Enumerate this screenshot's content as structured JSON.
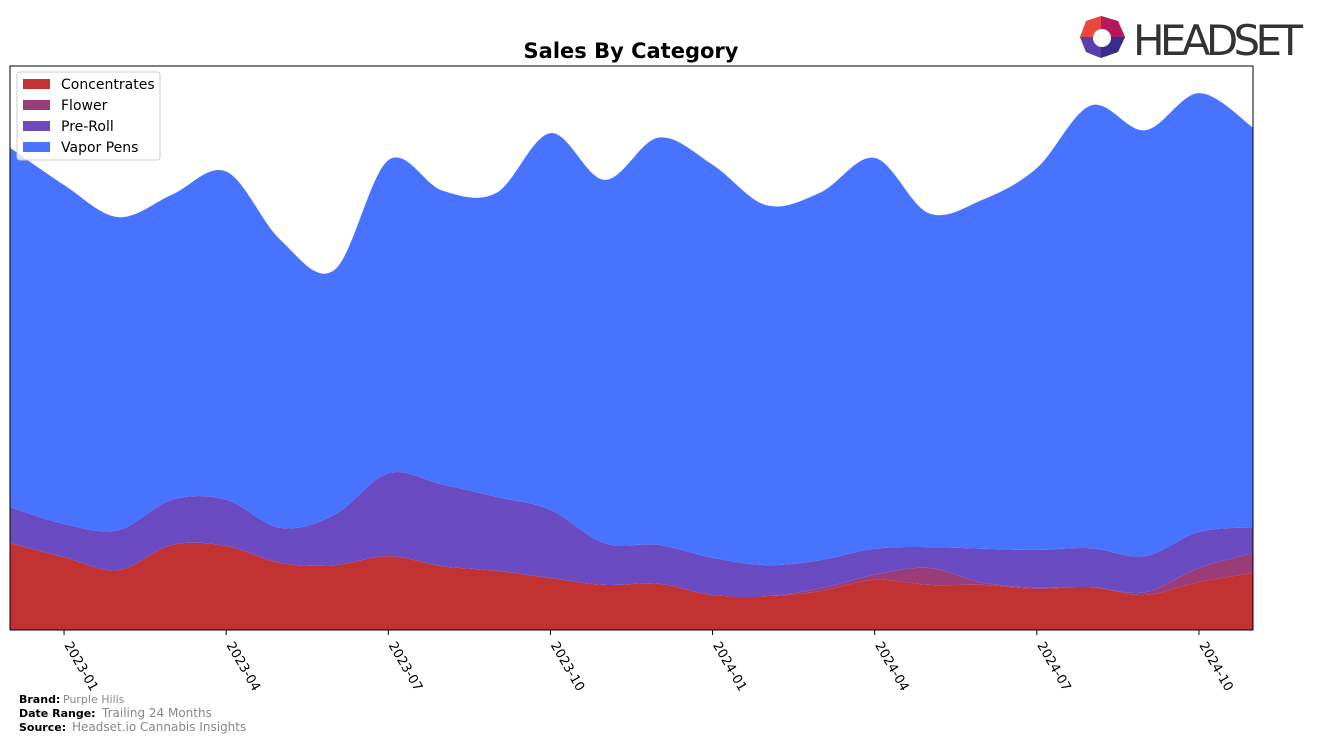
{
  "chart_data": {
    "type": "stacked-area",
    "title": "Sales By Category",
    "x": [
      "2022-12",
      "2023-01",
      "2023-02",
      "2023-03",
      "2023-04",
      "2023-05",
      "2023-06",
      "2023-07",
      "2023-08",
      "2023-09",
      "2023-10",
      "2023-11",
      "2023-12",
      "2024-01",
      "2024-02",
      "2024-03",
      "2024-04",
      "2024-05",
      "2024-06",
      "2024-07",
      "2024-08",
      "2024-09",
      "2024-10",
      "2024-11"
    ],
    "xlim": [
      "2022-12",
      "2024-11"
    ],
    "xticks": [
      "2023-01",
      "2023-04",
      "2023-07",
      "2023-10",
      "2024-01",
      "2024-04",
      "2024-07",
      "2024-10"
    ],
    "ylim": [
      0,
      100
    ],
    "legend": "upper-left",
    "series": [
      {
        "name": "Concentrates",
        "color": "#c23232",
        "values": [
          15.4,
          12.9,
          10.6,
          15.1,
          14.9,
          11.9,
          11.5,
          13.1,
          11.3,
          10.5,
          9.2,
          8.0,
          8.2,
          6.2,
          6.0,
          6.9,
          8.9,
          8.0,
          8.0,
          7.3,
          7.6,
          6.2,
          8.5,
          10.1
        ]
      },
      {
        "name": "Flower",
        "color": "#9a3c78",
        "values": [
          0,
          0,
          0,
          0,
          0,
          0,
          0,
          0,
          0,
          0,
          0,
          0,
          0,
          0,
          0,
          0.5,
          0.9,
          3.0,
          0.4,
          0.2,
          0,
          0.5,
          2.5,
          3.5
        ]
      },
      {
        "name": "Pre-Roll",
        "color": "#6b4bc2",
        "values": [
          6.4,
          5.9,
          7.1,
          8.0,
          8.2,
          6.2,
          8.9,
          14.7,
          14.5,
          13.1,
          12.1,
          7.4,
          6.9,
          6.6,
          5.5,
          5.0,
          4.6,
          3.7,
          6.0,
          6.7,
          6.9,
          6.4,
          6.4,
          4.6
        ]
      },
      {
        "name": "Vapor Pens",
        "color": "#4873ff",
        "values": [
          63.7,
          60.1,
          55.5,
          54.1,
          58.2,
          51.1,
          43.4,
          55.5,
          52.1,
          53.9,
          66.8,
          64.4,
          72.2,
          69.7,
          63.8,
          65.2,
          69.3,
          59.2,
          61.9,
          67.7,
          78.5,
          75.5,
          77.8,
          70.9
        ]
      }
    ]
  },
  "logo": "HEADSET",
  "footer": {
    "brand_label": "Brand:",
    "brand": "Purple Hills",
    "range_label": "Date Range:",
    "range": "Trailing 24 Months",
    "source_label": "Source:",
    "source": "Headset.io Cannabis Insights"
  }
}
